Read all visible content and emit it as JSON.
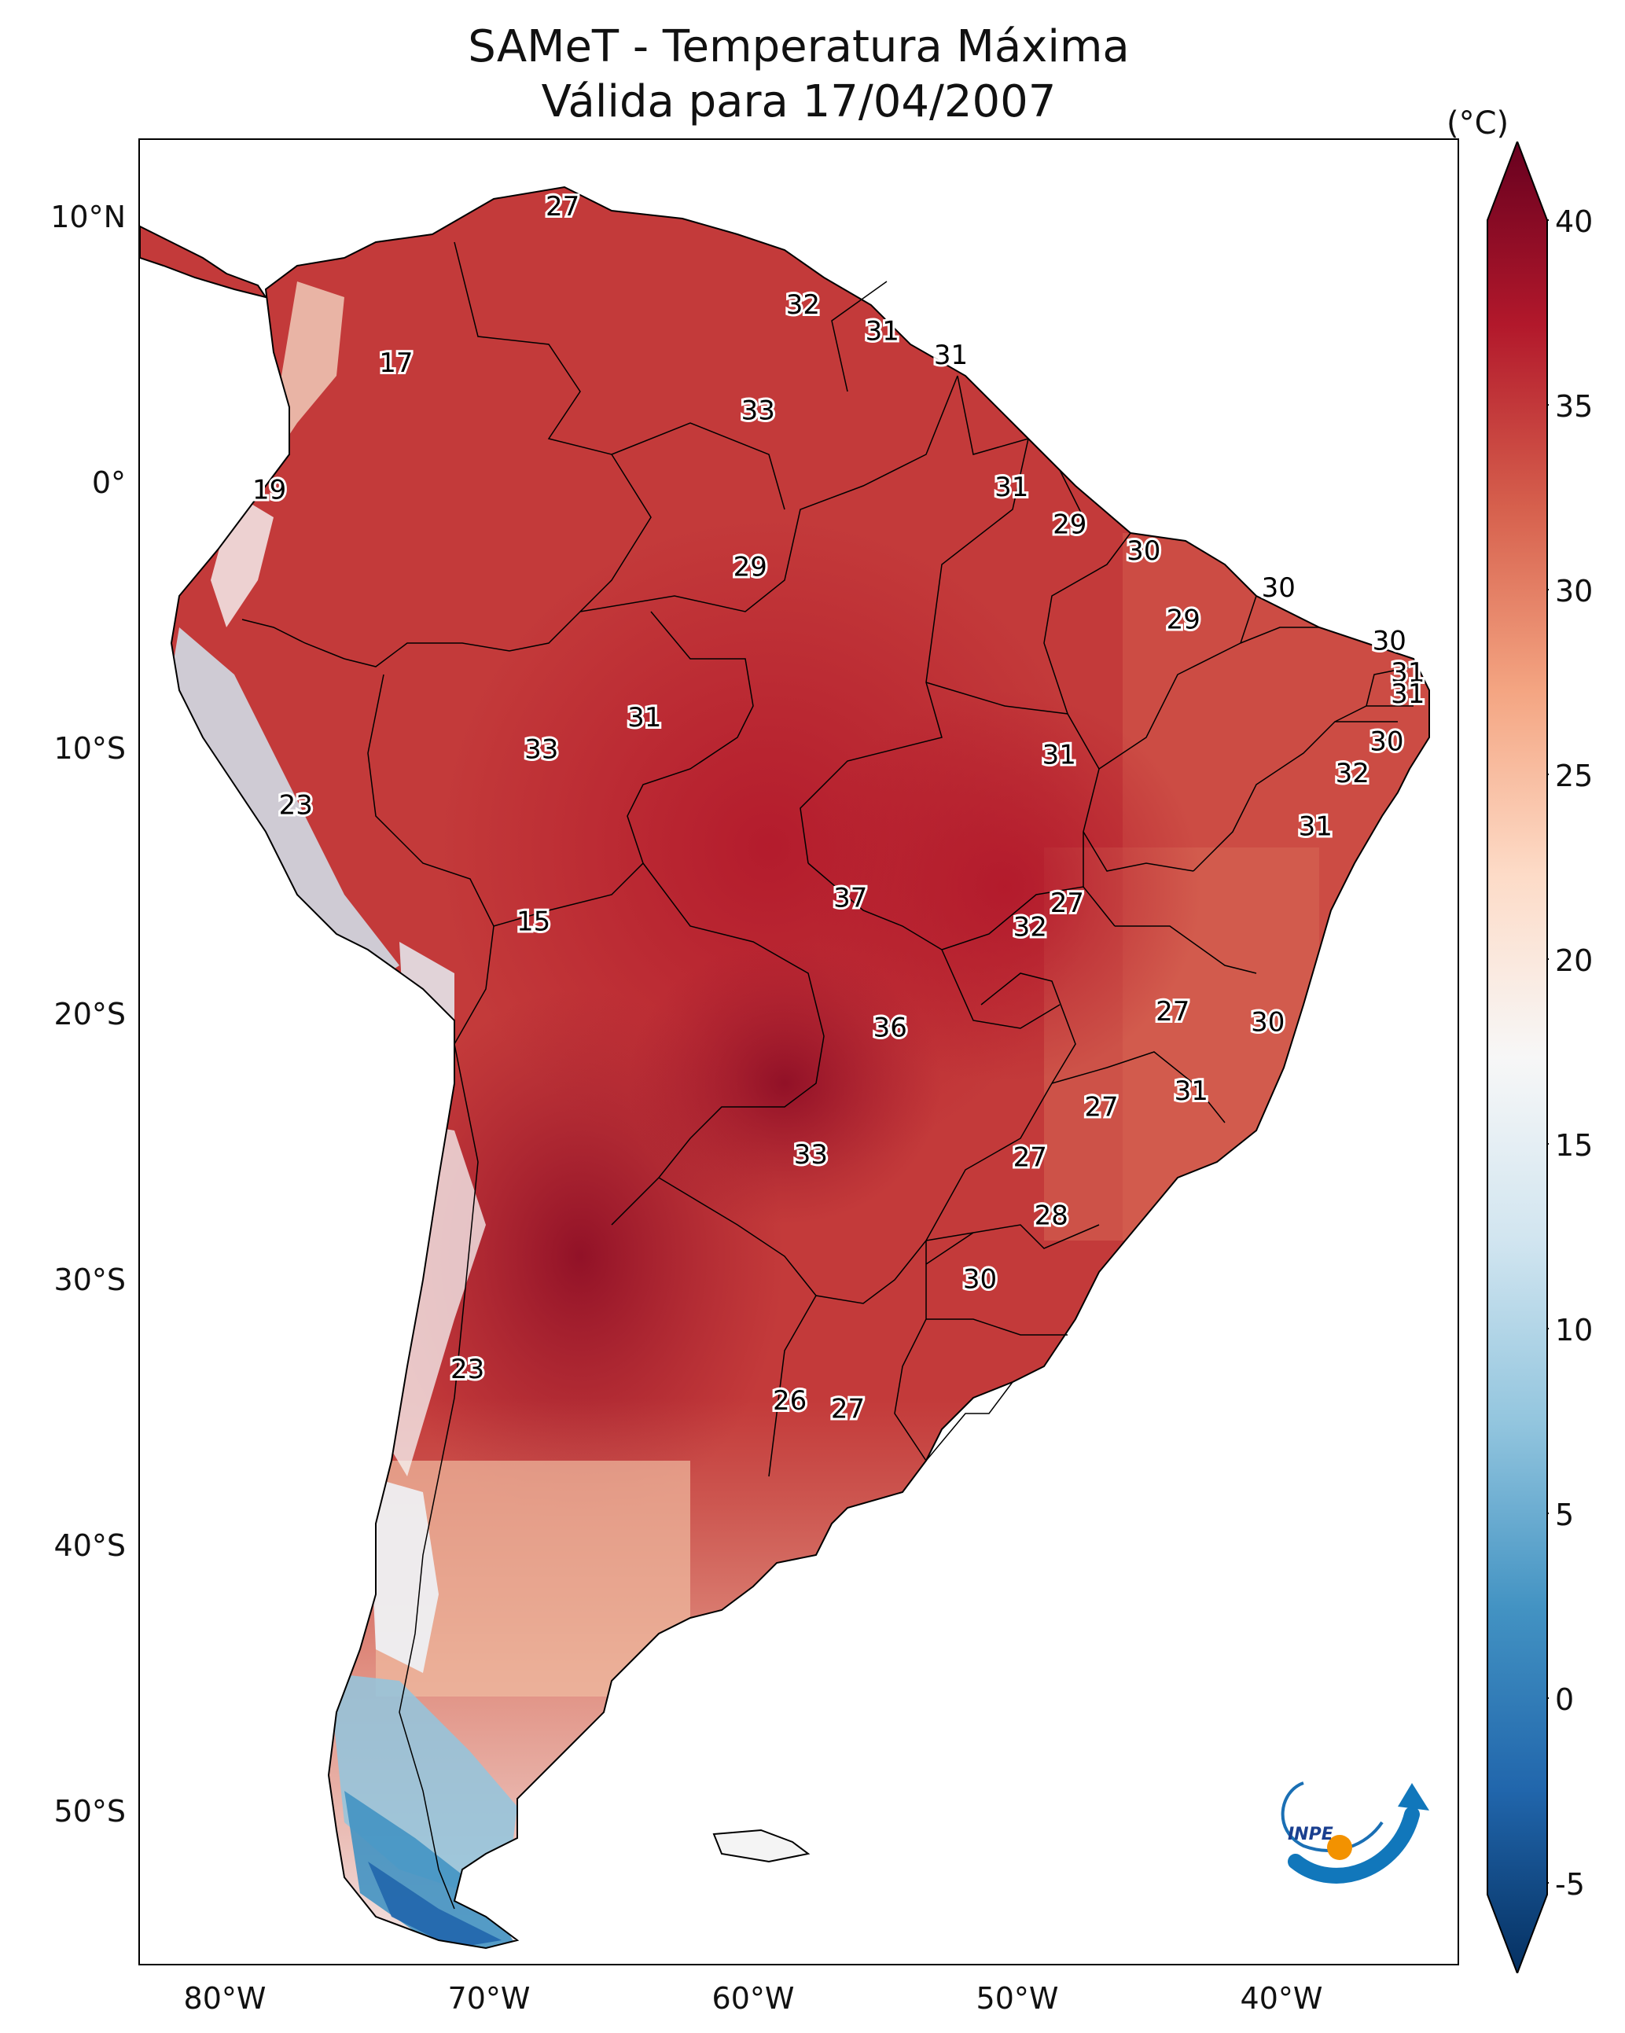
{
  "title": {
    "line1": "SAMeT - Temperatura Máxima",
    "line2": "Válida para 17/04/2007"
  },
  "map": {
    "region": "South America",
    "lat_labels": [
      "10°N",
      "0°",
      "10°S",
      "20°S",
      "30°S",
      "40°S",
      "50°S"
    ],
    "lon_labels": [
      "80°W",
      "70°W",
      "60°W",
      "50°W",
      "40°W"
    ],
    "extent": {
      "lon": [
        -83,
        -33
      ],
      "lat": [
        -56,
        13
      ]
    }
  },
  "colorbar": {
    "unit": "(°C)",
    "ticks": [
      "40",
      "35",
      "30",
      "25",
      "20",
      "15",
      "10",
      "5",
      "0",
      "-5"
    ],
    "range": [
      -5,
      40
    ],
    "colormap": "RdBu_r",
    "colors": [
      "#053061",
      "#2166ac",
      "#4393c3",
      "#92c5de",
      "#d1e5f0",
      "#f7f7f7",
      "#fddbc7",
      "#f4a582",
      "#d6604d",
      "#b2182b",
      "#67001f"
    ]
  },
  "stations": [
    {
      "value": "27",
      "lon": -67.0,
      "lat": 10.5
    },
    {
      "value": "17",
      "lon": -73.3,
      "lat": 4.6
    },
    {
      "value": "32",
      "lon": -57.9,
      "lat": 6.8
    },
    {
      "value": "31",
      "lon": -54.9,
      "lat": 5.8
    },
    {
      "value": "31",
      "lon": -52.3,
      "lat": 4.9
    },
    {
      "value": "33",
      "lon": -59.6,
      "lat": 2.8
    },
    {
      "value": "19",
      "lon": -78.1,
      "lat": -0.2
    },
    {
      "value": "31",
      "lon": -50.0,
      "lat": -0.1
    },
    {
      "value": "29",
      "lon": -47.8,
      "lat": -1.5
    },
    {
      "value": "30",
      "lon": -45.0,
      "lat": -2.5
    },
    {
      "value": "29",
      "lon": -59.9,
      "lat": -3.1
    },
    {
      "value": "30",
      "lon": -39.9,
      "lat": -3.9
    },
    {
      "value": "29",
      "lon": -43.5,
      "lat": -5.1
    },
    {
      "value": "30",
      "lon": -35.7,
      "lat": -5.9
    },
    {
      "value": "31",
      "lon": -35.0,
      "lat": -7.1
    },
    {
      "value": "31",
      "lon": -35.0,
      "lat": -7.9
    },
    {
      "value": "31",
      "lon": -63.9,
      "lat": -8.8
    },
    {
      "value": "33",
      "lon": -67.8,
      "lat": -10.0
    },
    {
      "value": "31",
      "lon": -48.2,
      "lat": -10.2
    },
    {
      "value": "30",
      "lon": -35.8,
      "lat": -9.7
    },
    {
      "value": "32",
      "lon": -37.1,
      "lat": -10.9
    },
    {
      "value": "23",
      "lon": -77.1,
      "lat": -12.1
    },
    {
      "value": "31",
      "lon": -38.5,
      "lat": -12.9
    },
    {
      "value": "37",
      "lon": -56.1,
      "lat": -15.6
    },
    {
      "value": "27",
      "lon": -47.9,
      "lat": -15.8
    },
    {
      "value": "32",
      "lon": -49.3,
      "lat": -16.7
    },
    {
      "value": "15",
      "lon": -68.1,
      "lat": -16.5
    },
    {
      "value": "27",
      "lon": -43.9,
      "lat": -19.9
    },
    {
      "value": "36",
      "lon": -54.6,
      "lat": -20.5
    },
    {
      "value": "30",
      "lon": -40.3,
      "lat": -20.3
    },
    {
      "value": "31",
      "lon": -43.2,
      "lat": -22.9
    },
    {
      "value": "27",
      "lon": -46.6,
      "lat": -23.5
    },
    {
      "value": "33",
      "lon": -57.6,
      "lat": -25.3
    },
    {
      "value": "27",
      "lon": -49.3,
      "lat": -25.4
    },
    {
      "value": "28",
      "lon": -48.5,
      "lat": -27.6
    },
    {
      "value": "30",
      "lon": -51.2,
      "lat": -30.0
    },
    {
      "value": "23",
      "lon": -70.6,
      "lat": -33.4
    },
    {
      "value": "26",
      "lon": -58.4,
      "lat": -34.6
    },
    {
      "value": "27",
      "lon": -56.2,
      "lat": -34.9
    }
  ],
  "logo": {
    "text": "INPE"
  }
}
